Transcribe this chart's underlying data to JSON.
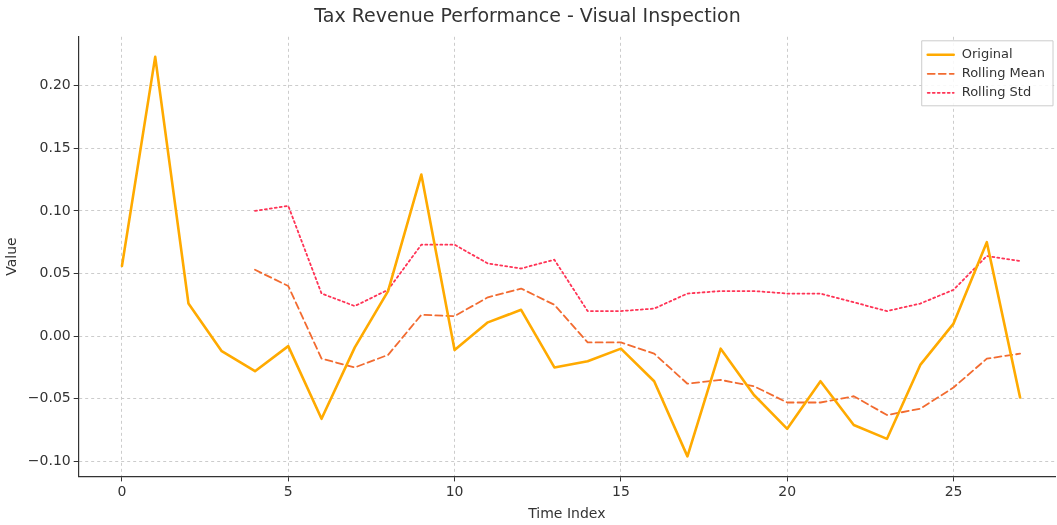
{
  "chart_data": {
    "type": "line",
    "title": "Tax Revenue Performance - Visual Inspection",
    "xlabel": "Time Index",
    "ylabel": "Value",
    "xlim": [
      -1.3,
      28.05
    ],
    "ylim": [
      -0.112,
      0.239
    ],
    "xticks": [
      0,
      5,
      10,
      15,
      20,
      25
    ],
    "yticks": [
      {
        "value": -0.1,
        "label": "−0.10"
      },
      {
        "value": -0.05,
        "label": "−0.05"
      },
      {
        "value": 0,
        "label": "0.00"
      },
      {
        "value": 0.05,
        "label": "0.05"
      },
      {
        "value": 0.1,
        "label": "0.10"
      },
      {
        "value": 0.15,
        "label": "0.15"
      },
      {
        "value": 0.2,
        "label": "0.20"
      }
    ],
    "grid": true,
    "legend": "top right",
    "series": [
      {
        "name": "Original",
        "color": "#ffaa00",
        "line_style": "solid",
        "x": [
          0,
          1,
          2,
          3,
          4,
          5,
          6,
          7,
          8,
          9,
          10,
          11,
          12,
          13,
          14,
          15,
          16,
          17,
          18,
          19,
          20,
          21,
          22,
          23,
          24,
          25,
          26,
          27
        ],
        "values": [
          0.056,
          0.223,
          0.026,
          -0.012,
          -0.028,
          -0.008,
          -0.066,
          -0.009,
          0.036,
          0.129,
          -0.011,
          0.011,
          0.021,
          -0.025,
          -0.02,
          -0.01,
          -0.036,
          -0.096,
          -0.01,
          -0.047,
          -0.074,
          -0.036,
          -0.071,
          -0.082,
          -0.023,
          0.01,
          0.075,
          -0.049
        ]
      },
      {
        "name": "Rolling Mean",
        "color": "#f26b30",
        "line_style": "dashed",
        "x": [
          4,
          5,
          6,
          7,
          8,
          9,
          10,
          11,
          12,
          13,
          14,
          15,
          16,
          17,
          18,
          19,
          20,
          21,
          22,
          23,
          24,
          25,
          26,
          27
        ],
        "values": [
          0.053,
          0.04,
          -0.018,
          -0.025,
          -0.015,
          0.017,
          0.016,
          0.031,
          0.038,
          0.025,
          -0.005,
          -0.005,
          -0.014,
          -0.038,
          -0.035,
          -0.04,
          -0.053,
          -0.053,
          -0.048,
          -0.063,
          -0.058,
          -0.041,
          -0.018,
          -0.014
        ]
      },
      {
        "name": "Rolling Std",
        "color": "#ff3355",
        "line_style": "dotted",
        "x": [
          4,
          5,
          6,
          7,
          8,
          9,
          10,
          11,
          12,
          13,
          14,
          15,
          16,
          17,
          18,
          19,
          20,
          21,
          22,
          23,
          24,
          25,
          26,
          27
        ],
        "values": [
          0.1,
          0.104,
          0.034,
          0.024,
          0.037,
          0.073,
          0.073,
          0.058,
          0.054,
          0.061,
          0.02,
          0.02,
          0.022,
          0.034,
          0.036,
          0.036,
          0.034,
          0.034,
          0.027,
          0.02,
          0.026,
          0.037,
          0.064,
          0.06
        ]
      }
    ]
  }
}
